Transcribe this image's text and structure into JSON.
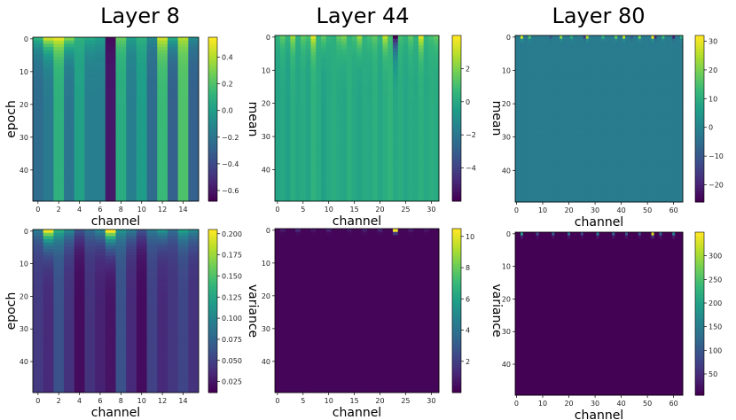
{
  "titles": [
    "Layer 8",
    "Layer 44",
    "Layer 80"
  ],
  "chart_data": [
    {
      "type": "heatmap",
      "layer": "Layer 8",
      "stat": "mean",
      "xlabel": "channel",
      "ylabel": "epoch",
      "cbar_label": "mean",
      "x_range": [
        0,
        15
      ],
      "y_range": [
        0,
        49
      ],
      "n_channels": 16,
      "n_epochs": 50,
      "x_ticks": [
        "0",
        "2",
        "4",
        "6",
        "8",
        "10",
        "12",
        "14"
      ],
      "y_ticks": [
        "0",
        "10",
        "20",
        "30",
        "40"
      ],
      "clim": [
        -0.68,
        0.55
      ],
      "cbar_ticks": [
        "0.4",
        "0.2",
        "0.0",
        "−0.2",
        "−0.4",
        "−0.6"
      ],
      "cbar_values": [
        0.4,
        0.2,
        0.0,
        -0.2,
        -0.4,
        -0.6
      ],
      "row0": [
        0.1,
        0.45,
        0.5,
        0.3,
        0.1,
        0.05,
        0.0,
        -0.65,
        0.25,
        0.0,
        0.1,
        -0.1,
        0.45,
        0.05,
        0.4,
        -0.1
      ],
      "steady": [
        -0.25,
        -0.18,
        0.1,
        -0.2,
        0.02,
        -0.15,
        -0.15,
        -0.6,
        0.08,
        -0.15,
        0.0,
        -0.25,
        0.15,
        -0.3,
        0.2,
        -0.3
      ]
    },
    {
      "type": "heatmap",
      "layer": "Layer 44",
      "stat": "mean",
      "xlabel": "channel",
      "ylabel": "",
      "cbar_label": "mean",
      "x_range": [
        0,
        31
      ],
      "y_range": [
        0,
        49
      ],
      "n_channels": 32,
      "n_epochs": 50,
      "x_ticks": [
        "0",
        "5",
        "10",
        "15",
        "20",
        "25",
        "30"
      ],
      "y_ticks": [
        "0",
        "10",
        "20",
        "30",
        "40"
      ],
      "clim": [
        -6.0,
        4.0
      ],
      "cbar_ticks": [
        "2",
        "0",
        "−2",
        "−4"
      ],
      "cbar_values": [
        2,
        0,
        -2,
        -4
      ],
      "row0": [
        0.5,
        1.5,
        0.5,
        2.5,
        0.3,
        1.5,
        1.0,
        3.5,
        0.5,
        1.5,
        0.5,
        0.3,
        1.5,
        2.0,
        0.5,
        1.0,
        2.5,
        0.5,
        1.0,
        1.5,
        0.5,
        3.0,
        1.0,
        -6.0,
        1.0,
        0.5,
        1.5,
        0.5,
        3.5,
        0.5,
        1.0,
        1.5
      ],
      "steady": [
        -0.2,
        0.0,
        -0.3,
        0.2,
        -0.1,
        0.1,
        -0.2,
        0.4,
        0.1,
        -0.3,
        0.0,
        0.2,
        0.0,
        -0.1,
        0.3,
        0.0,
        -0.2,
        0.1,
        0.0,
        0.3,
        -0.1,
        0.2,
        0.5,
        0.0,
        0.2,
        -0.1,
        0.1,
        0.0,
        0.3,
        0.0,
        0.2,
        0.1
      ]
    },
    {
      "type": "heatmap",
      "layer": "Layer 80",
      "stat": "mean",
      "xlabel": "channel",
      "ylabel": "",
      "cbar_label": "mean",
      "x_range": [
        0,
        63
      ],
      "y_range": [
        0,
        49
      ],
      "n_channels": 64,
      "n_epochs": 50,
      "x_ticks": [
        "0",
        "10",
        "20",
        "30",
        "40",
        "50",
        "60"
      ],
      "y_ticks": [
        "0",
        "10",
        "20",
        "30",
        "40"
      ],
      "clim": [
        -26,
        32
      ],
      "cbar_ticks": [
        "30",
        "20",
        "10",
        "0",
        "−10",
        "−20"
      ],
      "cbar_values": [
        30,
        20,
        10,
        0,
        -10,
        -20
      ],
      "row0_peaks": {
        "2": 28,
        "5": 15,
        "13": -10,
        "17": 22,
        "21": 10,
        "26": -15,
        "27": 25,
        "33": 12,
        "38": 18,
        "41": 26,
        "44": -8,
        "47": 20,
        "52": 30,
        "53": -18,
        "56": 14,
        "60": -20,
        "63": 10
      },
      "steady_value": -2.0
    },
    {
      "type": "heatmap",
      "layer": "Layer 8",
      "stat": "variance",
      "xlabel": "channel",
      "ylabel": "epoch",
      "cbar_label": "variance",
      "x_range": [
        0,
        15
      ],
      "y_range": [
        0,
        49
      ],
      "n_channels": 16,
      "n_epochs": 50,
      "x_ticks": [
        "0",
        "2",
        "4",
        "6",
        "8",
        "10",
        "12",
        "14"
      ],
      "y_ticks": [
        "0",
        "10",
        "20",
        "30",
        "40"
      ],
      "clim": [
        0.012,
        0.205
      ],
      "cbar_ticks": [
        "0.200",
        "0.175",
        "0.150",
        "0.125",
        "0.100",
        "0.075",
        "0.050",
        "0.025"
      ],
      "cbar_values": [
        0.2,
        0.175,
        0.15,
        0.125,
        0.1,
        0.075,
        0.05,
        0.025
      ],
      "row0": [
        0.09,
        0.2,
        0.13,
        0.1,
        0.06,
        0.08,
        0.1,
        0.205,
        0.11,
        0.09,
        0.06,
        0.09,
        0.11,
        0.08,
        0.12,
        0.1
      ],
      "steady": [
        0.045,
        0.035,
        0.06,
        0.04,
        0.018,
        0.04,
        0.03,
        0.022,
        0.06,
        0.035,
        0.018,
        0.05,
        0.035,
        0.042,
        0.052,
        0.04
      ]
    },
    {
      "type": "heatmap",
      "layer": "Layer 44",
      "stat": "variance",
      "xlabel": "channel",
      "ylabel": "",
      "cbar_label": "variance",
      "x_range": [
        0,
        31
      ],
      "y_range": [
        0,
        49
      ],
      "n_channels": 32,
      "n_epochs": 50,
      "x_ticks": [
        "0",
        "5",
        "10",
        "15",
        "20",
        "25",
        "30"
      ],
      "y_ticks": [
        "0",
        "10",
        "20",
        "30",
        "40"
      ],
      "clim": [
        0.0,
        10.5
      ],
      "cbar_ticks": [
        "10",
        "8",
        "6",
        "4",
        "2"
      ],
      "cbar_values": [
        10,
        8,
        6,
        4,
        2
      ],
      "row0_peaks": {
        "1": 0.8,
        "4": 1.2,
        "7": 0.6,
        "10": 1.0,
        "14": 0.7,
        "17": 0.9,
        "20": 1.1,
        "23": 10.3,
        "26": 0.8,
        "29": 0.6
      },
      "steady_value": 0.15
    },
    {
      "type": "heatmap",
      "layer": "Layer 80",
      "stat": "variance",
      "xlabel": "channel",
      "ylabel": "",
      "cbar_label": "variance",
      "x_range": [
        0,
        63
      ],
      "y_range": [
        0,
        49
      ],
      "n_channels": 64,
      "n_epochs": 50,
      "x_ticks": [
        "0",
        "10",
        "20",
        "30",
        "40",
        "50",
        "60"
      ],
      "y_ticks": [
        "0",
        "10",
        "20",
        "30",
        "40"
      ],
      "clim": [
        5,
        350
      ],
      "cbar_ticks": [
        "300",
        "250",
        "200",
        "150",
        "100",
        "50"
      ],
      "cbar_values": [
        300,
        250,
        200,
        150,
        100,
        50
      ],
      "row0_peaks": {
        "2": 200,
        "8": 90,
        "14": 110,
        "20": 130,
        "25": 80,
        "31": 150,
        "37": 120,
        "42": 100,
        "47": 90,
        "52": 330,
        "55": 120,
        "60": 160
      },
      "steady_value": 6
    }
  ]
}
